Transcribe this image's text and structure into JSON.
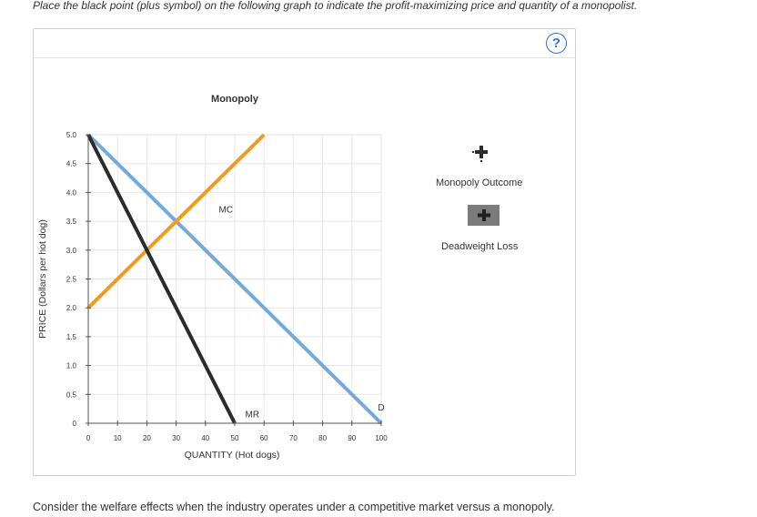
{
  "instruction": "Place the black point (plus symbol) on the following graph to indicate the profit-maximizing price and quantity of a monopolist.",
  "help_label": "?",
  "footer": "Consider the welfare effects when the industry operates under a competitive market versus a monopoly.",
  "legend": {
    "monopoly_outcome": "Monopoly Outcome",
    "deadweight_loss": "Deadweight Loss"
  },
  "colors": {
    "demand": "#74a9d8",
    "mc": "#f39a1e",
    "mr": "#2b2b2b",
    "grid": "#e6e6e6",
    "help": "#2f74c8",
    "dwl_tool": "#7b7b7b"
  },
  "icons": {
    "monopoly_tool": "plus-point-icon",
    "dwl_tool": "plus-area-icon",
    "help": "question-circle-icon"
  },
  "chart_data": {
    "type": "line",
    "title": "Monopoly",
    "xlabel": "QUANTITY (Hot dogs)",
    "ylabel": "PRICE (Dollars per hot dog)",
    "xlim": [
      0,
      100
    ],
    "ylim": [
      0,
      5
    ],
    "x_ticks": [
      "0",
      "10",
      "20",
      "30",
      "40",
      "50",
      "60",
      "70",
      "80",
      "90",
      "100"
    ],
    "y_ticks": [
      "0",
      "0.5",
      "1.0",
      "1.5",
      "2.0",
      "2.5",
      "3.0",
      "3.5",
      "4.0",
      "4.5",
      "5.0"
    ],
    "grid": true,
    "series": [
      {
        "name": "D",
        "x": [
          0,
          100
        ],
        "y": [
          5,
          0
        ]
      },
      {
        "name": "MC",
        "x": [
          0,
          60
        ],
        "y": [
          2,
          5
        ]
      },
      {
        "name": "MR",
        "x": [
          0,
          50
        ],
        "y": [
          5,
          0
        ]
      }
    ]
  }
}
